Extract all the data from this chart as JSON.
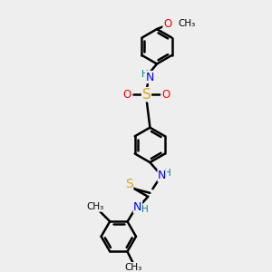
{
  "bg_color": "#eeeeee",
  "bond_color": "#000000",
  "bond_width": 1.8,
  "atom_colors": {
    "N": "#0000FF",
    "H": "#008080",
    "S_sulfo": "#DAA520",
    "S_thio": "#DAA520",
    "O": "#FF0000",
    "C": "#000000"
  },
  "font_size": 8.5,
  "fig_width": 3.0,
  "fig_height": 3.0,
  "dpi": 100,
  "xlim": [
    -2.5,
    2.5
  ],
  "ylim": [
    -4.0,
    3.5
  ]
}
